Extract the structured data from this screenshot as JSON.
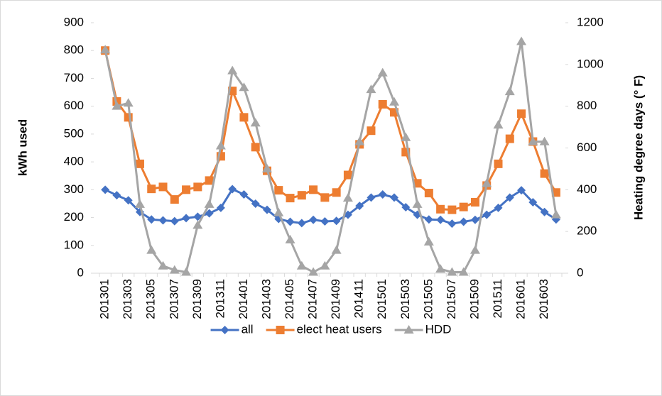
{
  "chart_data": {
    "type": "line",
    "categories": [
      "201301",
      null,
      "201303",
      null,
      "201305",
      null,
      "201307",
      null,
      "201309",
      null,
      "201311",
      null,
      "201401",
      null,
      "201403",
      null,
      "201405",
      null,
      "201407",
      null,
      "201409",
      null,
      "201411",
      null,
      "201501",
      null,
      "201503",
      null,
      "201505",
      null,
      "201507",
      null,
      "201509",
      null,
      "201511",
      null,
      "201601",
      null,
      "201603",
      null
    ],
    "y_label": "kWh used",
    "y2_label": "Heating degree days (° F)",
    "ylim": [
      0,
      900
    ],
    "yticks": [
      0,
      100,
      200,
      300,
      400,
      500,
      600,
      700,
      800,
      900
    ],
    "y2lim": [
      0,
      1200
    ],
    "y2ticks": [
      0,
      200,
      400,
      600,
      800,
      1000,
      1200
    ],
    "legend": "bottom",
    "series": [
      {
        "name": "all",
        "color": "#4472c4",
        "marker": "diamond",
        "values": [
          300,
          280,
          262,
          220,
          193,
          190,
          187,
          198,
          203,
          215,
          235,
          302,
          283,
          250,
          228,
          195,
          185,
          180,
          192,
          186,
          188,
          210,
          242,
          272,
          283,
          272,
          237,
          210,
          193,
          192,
          178,
          185,
          192,
          210,
          235,
          272,
          298,
          255,
          220,
          193
        ]
      },
      {
        "name": "elect heat users",
        "color": "#ed7d31",
        "marker": "square",
        "values": [
          800,
          617,
          560,
          393,
          303,
          310,
          265,
          300,
          310,
          333,
          420,
          655,
          560,
          453,
          368,
          298,
          270,
          280,
          300,
          272,
          290,
          353,
          463,
          512,
          607,
          578,
          435,
          323,
          288,
          230,
          228,
          238,
          255,
          315,
          393,
          483,
          573,
          473,
          358,
          290
        ]
      },
      {
        "name": "HDD",
        "color": "#a5a5a5",
        "marker": "triangle",
        "axis": "y2",
        "values": [
          1070,
          800,
          815,
          330,
          110,
          35,
          15,
          5,
          230,
          330,
          610,
          970,
          890,
          720,
          500,
          290,
          160,
          35,
          5,
          35,
          110,
          360,
          630,
          880,
          960,
          820,
          650,
          330,
          150,
          20,
          5,
          5,
          110,
          430,
          710,
          870,
          1110,
          630,
          630,
          280
        ]
      }
    ]
  }
}
